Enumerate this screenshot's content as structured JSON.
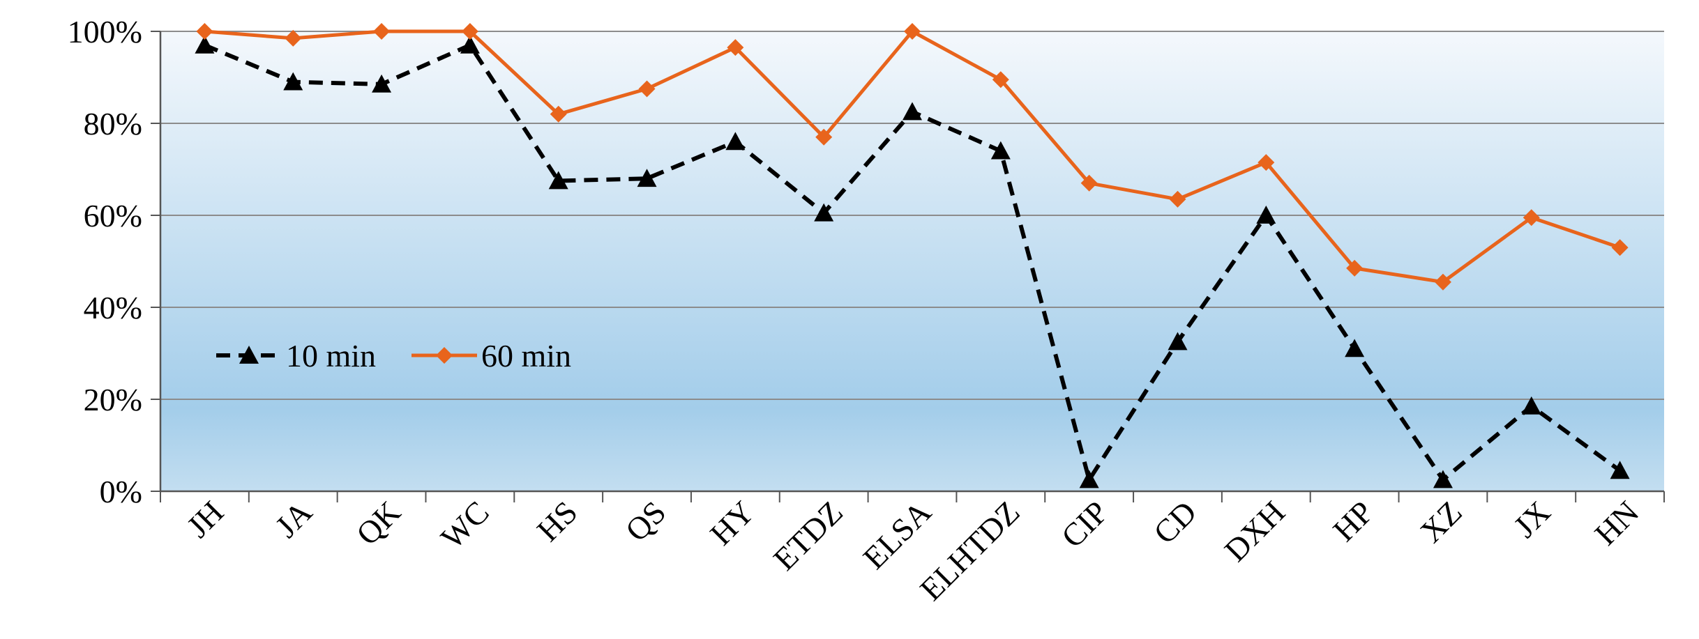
{
  "chart_data": {
    "type": "line",
    "title": "",
    "xlabel": "",
    "ylabel": "",
    "categories": [
      "JH",
      "JA",
      "QK",
      "WC",
      "HS",
      "QS",
      "HY",
      "ETDZ",
      "ELSA",
      "ELHTDZ",
      "CIP",
      "CD",
      "DXH",
      "HP",
      "XZ",
      "JX",
      "HN"
    ],
    "ylim": [
      0,
      1
    ],
    "yticks": [
      0,
      0.2,
      0.4,
      0.6,
      0.8,
      1.0
    ],
    "ytick_labels": [
      "0%",
      "20%",
      "40%",
      "60%",
      "80%",
      "100%"
    ],
    "grid": true,
    "legend_position": "lower-left",
    "series": [
      {
        "name": "10 min",
        "color": "#000000",
        "line_style": "dashed",
        "marker": "triangle",
        "values": [
          0.97,
          0.89,
          0.885,
          0.97,
          0.675,
          0.68,
          0.76,
          0.605,
          0.825,
          0.74,
          0.025,
          0.325,
          0.6,
          0.31,
          0.025,
          0.185,
          0.045
        ]
      },
      {
        "name": "60 min",
        "color": "#E8641C",
        "line_style": "solid",
        "marker": "diamond",
        "values": [
          1.0,
          0.985,
          1.0,
          1.0,
          0.82,
          0.875,
          0.965,
          0.77,
          1.0,
          0.895,
          0.67,
          0.635,
          0.715,
          0.485,
          0.455,
          0.595,
          0.53
        ]
      }
    ],
    "background_gradient": [
      "#F4F8FC",
      "#A3CDEA",
      "#C3DEF0"
    ]
  }
}
